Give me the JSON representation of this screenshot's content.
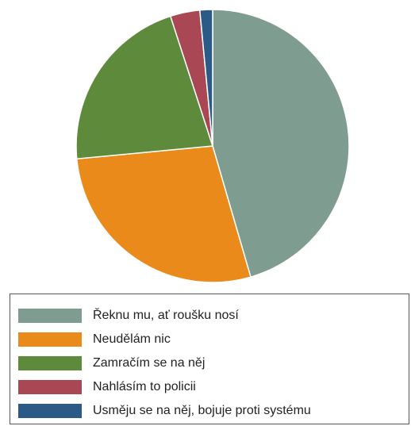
{
  "chart_data": {
    "type": "pie",
    "title": "",
    "slices": [
      {
        "label": "Řeknu mu, ať roušku nosí",
        "value": 45.5,
        "color": "#7e9c8f"
      },
      {
        "label": "Neudělám nic",
        "value": 28.0,
        "color": "#e98a1b"
      },
      {
        "label": "Zamračím se na něj",
        "value": 21.5,
        "color": "#5d8a3b"
      },
      {
        "label": "Nahlásím to policii",
        "value": 3.5,
        "color": "#a94854"
      },
      {
        "label": "Usměju se na něj, bojuje proti systému",
        "value": 1.5,
        "color": "#2a5a85"
      }
    ],
    "start_angle_deg": 0,
    "direction": "clockwise",
    "legend_position": "bottom"
  }
}
